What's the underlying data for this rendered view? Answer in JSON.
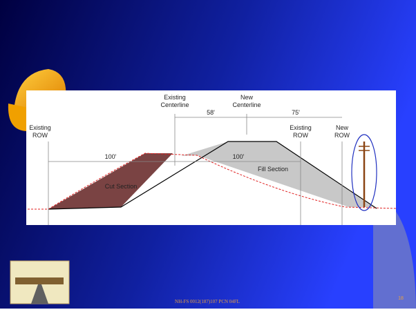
{
  "diagram": {
    "labels": {
      "existing_centerline": [
        "Existing",
        "Centerline"
      ],
      "new_centerline": [
        "New",
        "Centerline"
      ],
      "existing_row_left": [
        "Existing",
        "ROW"
      ],
      "existing_row_right": [
        "Existing",
        "ROW"
      ],
      "new_row": [
        "New",
        "ROW"
      ],
      "dim_58": "58'",
      "dim_75": "75'",
      "dim_100_left": "100'",
      "dim_100_right": "100'",
      "cut_section": "Cut Section",
      "fill_section": "Fill Section"
    }
  },
  "footer": {
    "text": "NH-FS 0012(187)107  PCN 04FL",
    "page_number": "18"
  }
}
